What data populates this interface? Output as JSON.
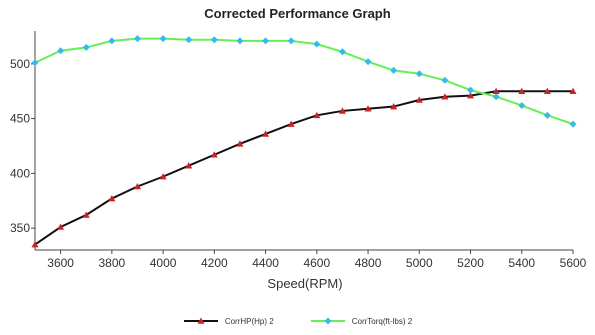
{
  "chart_data": {
    "type": "line",
    "title": "Corrected Performance Graph",
    "xlabel": "Speed(RPM)",
    "ylabel": "",
    "xlim": [
      3500,
      5600
    ],
    "ylim": [
      330,
      530
    ],
    "xticks": [
      3600,
      3800,
      4000,
      4200,
      4400,
      4600,
      4800,
      5000,
      5200,
      5400,
      5600
    ],
    "yticks": [
      350,
      400,
      450,
      500
    ],
    "grid": false,
    "legend_position": "bottom",
    "x": [
      3500,
      3600,
      3700,
      3800,
      3900,
      4000,
      4100,
      4200,
      4300,
      4400,
      4500,
      4600,
      4700,
      4800,
      4900,
      5000,
      5100,
      5200,
      5300,
      5400,
      5500,
      5600
    ],
    "series": [
      {
        "name": "CorrHP(Hp)  2",
        "color": "#111111",
        "marker": "triangle",
        "marker_color": "#cc2222",
        "values": [
          335,
          351,
          362,
          377,
          388,
          397,
          407,
          417,
          427,
          436,
          445,
          453,
          457,
          459,
          461,
          467,
          470,
          471,
          475,
          475,
          475,
          475
        ]
      },
      {
        "name": "CorrTorq(ft-lbs)  2",
        "color": "#66ee55",
        "marker": "diamond",
        "marker_color": "#33bbee",
        "values": [
          501,
          512,
          515,
          521,
          523,
          523,
          522,
          522,
          521,
          521,
          521,
          518,
          511,
          502,
          494,
          491,
          485,
          476,
          470,
          462,
          453,
          445
        ]
      }
    ]
  }
}
